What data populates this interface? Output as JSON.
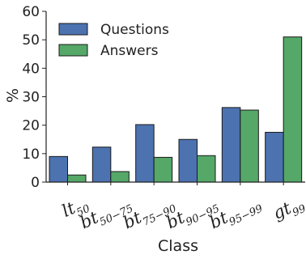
{
  "chart_data": {
    "type": "bar",
    "categories": [
      {
        "main": "lt",
        "sub": "50"
      },
      {
        "main": "bt",
        "sub": "50−75"
      },
      {
        "main": "bt",
        "sub": "75−90"
      },
      {
        "main": "bt",
        "sub": "90−95"
      },
      {
        "main": "bt",
        "sub": "95−99"
      },
      {
        "main": "gt",
        "sub": "99"
      }
    ],
    "series": [
      {
        "name": "Questions",
        "color": "#4c72b0",
        "values": [
          9,
          12.3,
          20.2,
          15,
          26.2,
          17.5
        ]
      },
      {
        "name": "Answers",
        "color": "#55a868",
        "values": [
          2.5,
          3.7,
          8.7,
          9.3,
          25.3,
          51
        ]
      }
    ],
    "xlabel": "Class",
    "ylabel": "%",
    "ylim": [
      0,
      60
    ],
    "yticks": [
      "0",
      "10",
      "20",
      "30",
      "40",
      "50",
      "60"
    ],
    "grid": false,
    "legend": "top-left"
  }
}
